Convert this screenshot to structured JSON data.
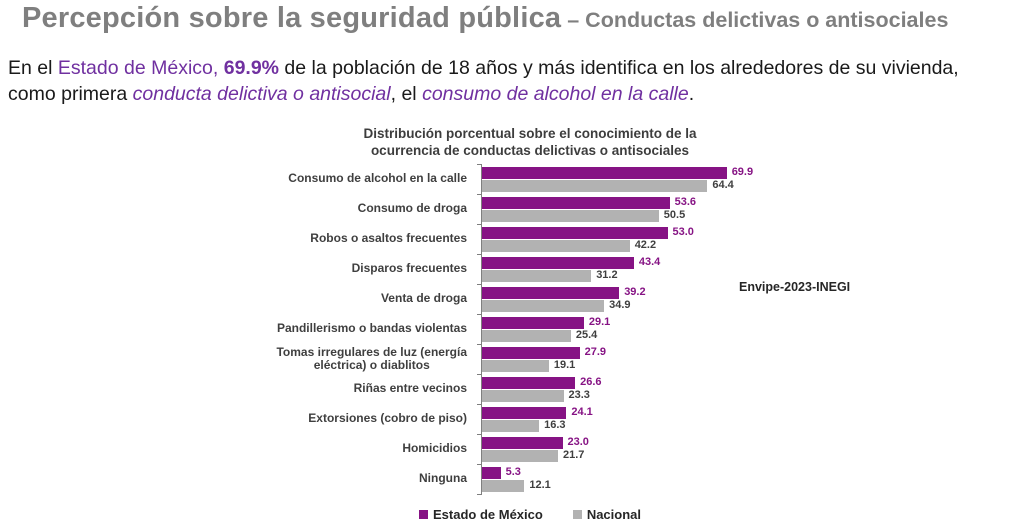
{
  "header": {
    "title_main": "Percepción sobre la seguridad pública",
    "title_sub": "– Conductas delictivas o antisociales"
  },
  "intro": {
    "line1": [
      {
        "t": "En el ",
        "style": "normal"
      },
      {
        "t": "Estado de México,",
        "style": "purple"
      },
      {
        "t": " ",
        "style": "normal"
      },
      {
        "t": "69.9%",
        "style": "purple-bold"
      },
      {
        "t": " de la población de 18 años y más identifica en los alrededores de su vivienda,",
        "style": "normal"
      }
    ],
    "line2": [
      {
        "t": "como primera ",
        "style": "normal"
      },
      {
        "t": "conducta delictiva o antisocial",
        "style": "purple-italic"
      },
      {
        "t": ", el ",
        "style": "normal"
      },
      {
        "t": "consumo de alcohol en la calle",
        "style": "purple-italic"
      },
      {
        "t": ".",
        "style": "normal"
      }
    ]
  },
  "chart_data": {
    "type": "bar",
    "orientation": "horizontal",
    "title": "Distribución porcentual sobre el conocimiento de la ocurrencia de conductas delictivas o antisociales",
    "title_line1": "Distribución porcentual sobre el conocimiento de la",
    "title_line2": "ocurrencia de conductas delictivas o antisociales",
    "categories": [
      "Consumo de alcohol en la calle",
      "Consumo de droga",
      "Robos o asaltos frecuentes",
      "Disparos frecuentes",
      "Venta de droga",
      "Pandillerismo o bandas violentas",
      "Tomas irregulares de luz (energía\neléctrica) o diablitos",
      "Riñas entre vecinos",
      "Extorsiones (cobro de piso)",
      "Homicidios",
      "Ninguna"
    ],
    "series": [
      {
        "name": "Estado de México",
        "color": "#861384",
        "values": [
          69.9,
          53.6,
          53.0,
          43.4,
          39.2,
          29.1,
          27.9,
          26.6,
          24.1,
          23.0,
          5.3
        ]
      },
      {
        "name": "Nacional",
        "color": "#b2b2b2",
        "values": [
          64.4,
          50.5,
          42.2,
          31.2,
          34.9,
          25.4,
          19.1,
          23.3,
          16.3,
          21.7,
          12.1
        ]
      }
    ],
    "value_label_colors": {
      "estado": "#861384",
      "nacional": "#3f3f3f"
    },
    "xlim": [
      0,
      80
    ],
    "xlabel": "",
    "ylabel": "",
    "grid": false,
    "legend_position": "bottom",
    "annotation": "Envipe-2023-INEGI"
  }
}
